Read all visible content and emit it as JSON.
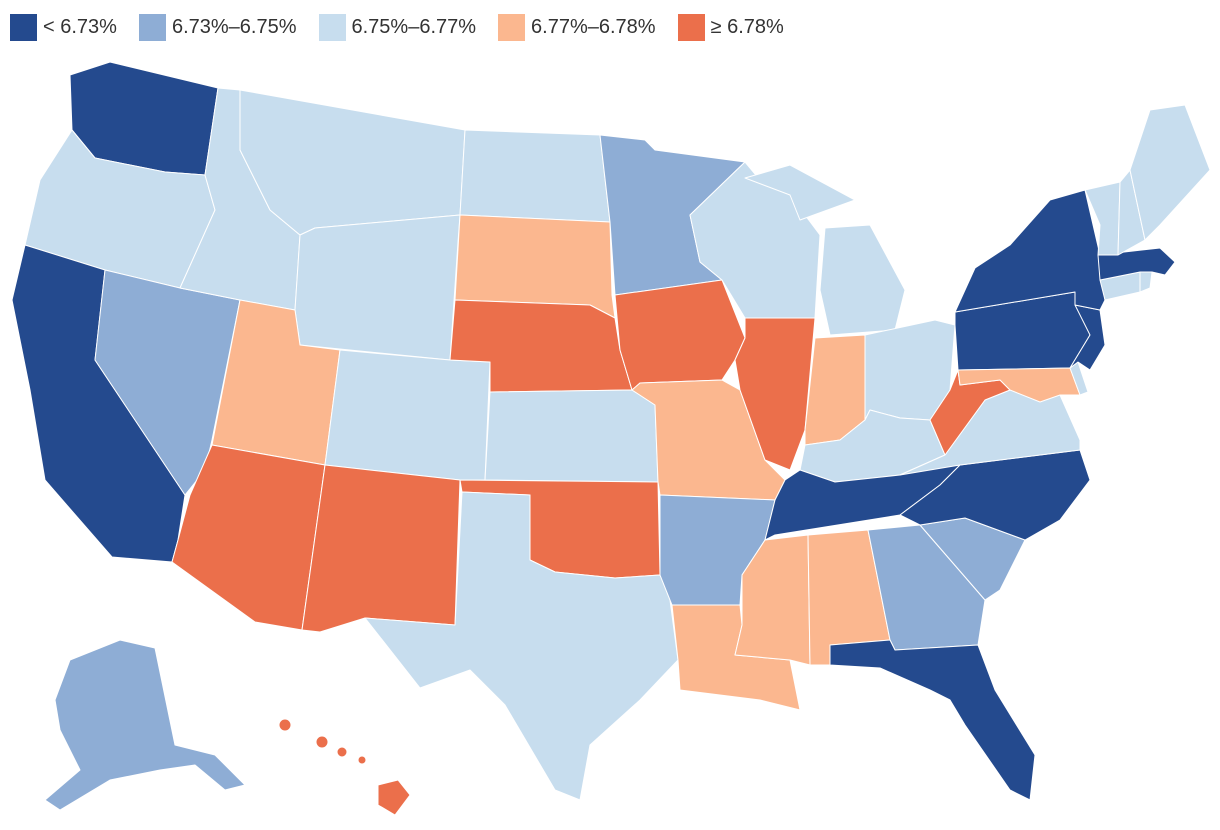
{
  "colors": {
    "lt_6_73": "#244a8e",
    "6_73_6_75": "#8eadd5",
    "6_75_6_77": "#c7ddee",
    "6_77_6_78": "#fbb78f",
    "ge_6_78": "#eb6f4b"
  },
  "legend": {
    "items": [
      {
        "label": "< 6.73%",
        "color": "#244a8e"
      },
      {
        "label": "6.73%–6.75%",
        "color": "#8eadd5"
      },
      {
        "label": "6.75%–6.77%",
        "color": "#c7ddee"
      },
      {
        "label": "6.77%–6.78%",
        "color": "#fbb78f"
      },
      {
        "label": "≥ 6.78%",
        "color": "#eb6f4b"
      }
    ]
  },
  "states": {
    "WA": "lt_6_73",
    "CA": "lt_6_73",
    "NY": "lt_6_73",
    "PA": "lt_6_73",
    "NJ": "lt_6_73",
    "MA": "lt_6_73",
    "NC": "lt_6_73",
    "TN": "lt_6_73",
    "FL": "lt_6_73",
    "NV": "6_73_6_75",
    "MN": "6_73_6_75",
    "AR": "6_73_6_75",
    "GA": "6_73_6_75",
    "SC": "6_73_6_75",
    "AK": "6_73_6_75",
    "OR": "6_75_6_77",
    "ID": "6_75_6_77",
    "MT": "6_75_6_77",
    "WY": "6_75_6_77",
    "ND": "6_75_6_77",
    "CO": "6_75_6_77",
    "KS": "6_75_6_77",
    "TX": "6_75_6_77",
    "WI": "6_75_6_77",
    "MI": "6_75_6_77",
    "OH": "6_75_6_77",
    "KY": "6_75_6_77",
    "VA": "6_75_6_77",
    "ME": "6_75_6_77",
    "VT": "6_75_6_77",
    "NH": "6_75_6_77",
    "CT": "6_75_6_77",
    "RI": "6_75_6_77",
    "DE": "6_75_6_77",
    "UT": "6_77_6_78",
    "SD": "6_77_6_78",
    "MO": "6_77_6_78",
    "IN": "6_77_6_78",
    "MS": "6_77_6_78",
    "AL": "6_77_6_78",
    "LA": "6_77_6_78",
    "MD": "6_77_6_78",
    "AZ": "ge_6_78",
    "NM": "ge_6_78",
    "NE": "ge_6_78",
    "OK": "ge_6_78",
    "IA": "ge_6_78",
    "IL": "ge_6_78",
    "WV": "ge_6_78",
    "HI": "ge_6_78"
  }
}
